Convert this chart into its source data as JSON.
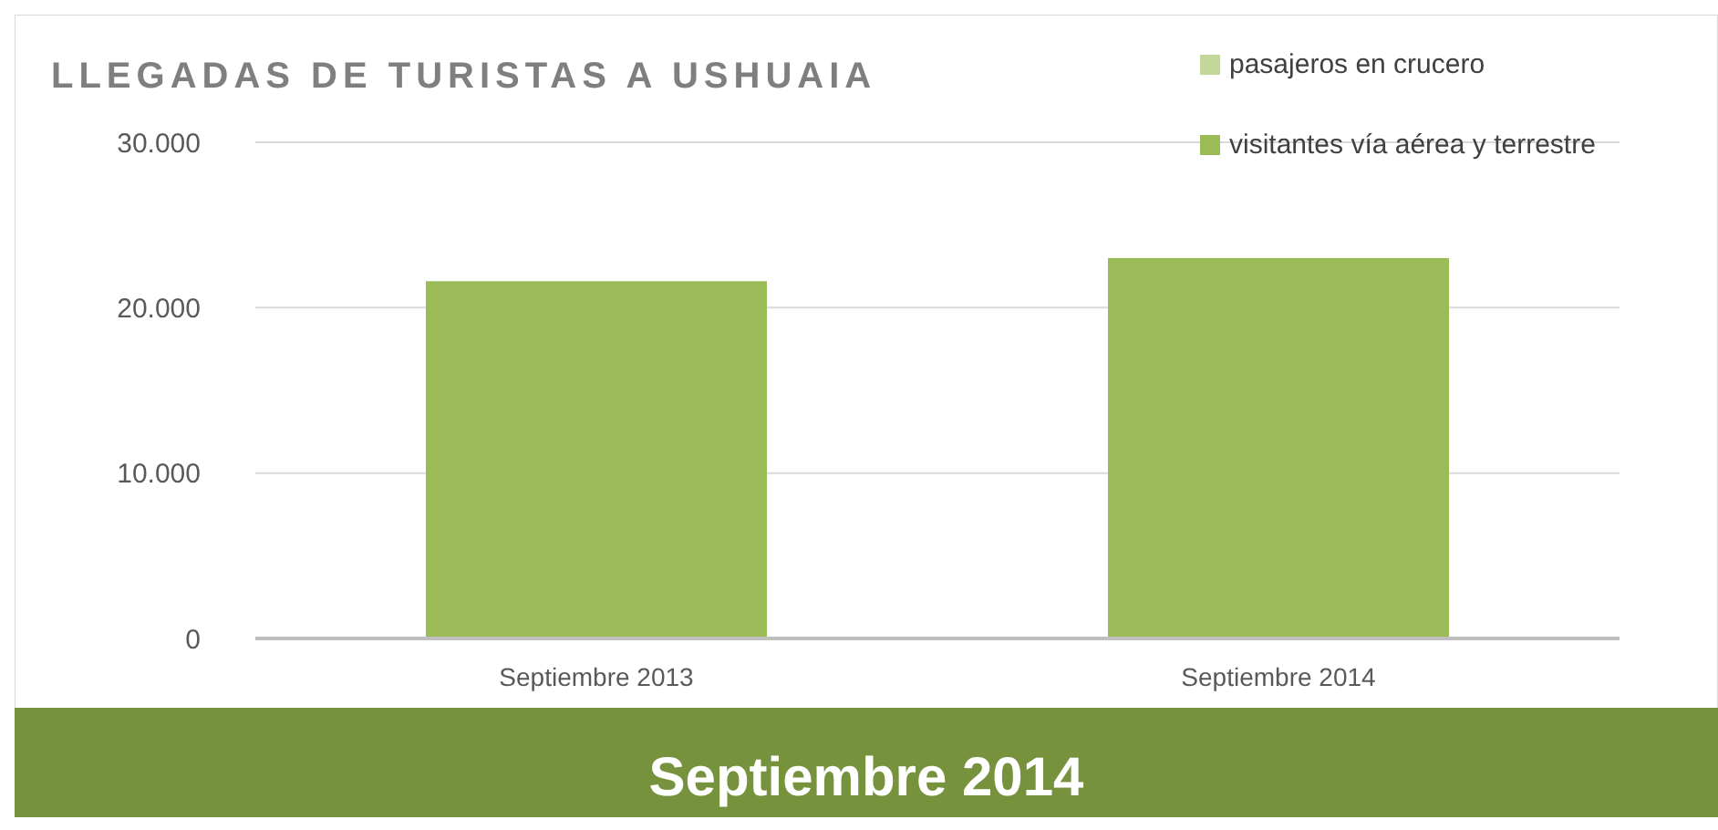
{
  "chart_data": {
    "type": "bar",
    "title": "LLEGADAS DE TURISTAS A USHUAIA",
    "categories": [
      "Septiembre 2013",
      "Septiembre 2014"
    ],
    "stacked": true,
    "series": [
      {
        "name": "visitantes vía aérea y terrestre",
        "color": "#9bbb59",
        "values": [
          21600,
          23000
        ]
      },
      {
        "name": "pasajeros en crucero",
        "color": "#c4d79b",
        "values": [
          0,
          0
        ]
      }
    ],
    "ylim": [
      0,
      30000
    ],
    "yticks": [
      {
        "value": 0,
        "label": "0"
      },
      {
        "value": 10000,
        "label": "10.000"
      },
      {
        "value": 20000,
        "label": "20.000"
      },
      {
        "value": 30000,
        "label": "30.000"
      }
    ],
    "grid": "y",
    "legend": "top right",
    "annotations": [
      "Septiembre 2014"
    ]
  }
}
